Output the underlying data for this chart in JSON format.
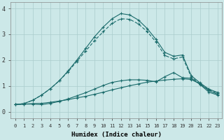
{
  "xlabel": "Humidex (Indice chaleur)",
  "bg_color": "#cce8e8",
  "grid_color": "#aacccc",
  "line_color": "#1a6b6b",
  "xlim": [
    -0.5,
    23.5
  ],
  "ylim": [
    -0.25,
    4.25
  ],
  "xticks": [
    0,
    1,
    2,
    3,
    4,
    5,
    6,
    7,
    8,
    9,
    10,
    11,
    12,
    13,
    14,
    15,
    16,
    17,
    18,
    19,
    20,
    21,
    22,
    23
  ],
  "yticks": [
    0,
    1,
    2,
    3,
    4
  ],
  "line1_y": [
    0.28,
    0.3,
    0.32,
    0.33,
    0.37,
    0.42,
    0.47,
    0.54,
    0.6,
    0.68,
    0.76,
    0.85,
    0.93,
    1.01,
    1.08,
    1.15,
    1.19,
    1.23,
    1.26,
    1.28,
    1.25,
    1.08,
    0.82,
    0.68
  ],
  "line2_y": [
    0.28,
    0.3,
    0.3,
    0.28,
    0.33,
    0.4,
    0.5,
    0.62,
    0.74,
    0.88,
    1.02,
    1.14,
    1.2,
    1.24,
    1.24,
    1.22,
    1.16,
    1.36,
    1.52,
    1.32,
    1.3,
    1.06,
    0.76,
    0.65
  ],
  "line3_y": [
    0.28,
    0.32,
    0.45,
    0.65,
    0.9,
    1.2,
    1.55,
    1.95,
    2.35,
    2.75,
    3.1,
    3.42,
    3.6,
    3.58,
    3.4,
    3.1,
    2.7,
    2.18,
    2.05,
    2.12,
    1.35,
    1.08,
    0.85,
    0.72
  ],
  "line4_y": [
    0.28,
    0.32,
    0.45,
    0.65,
    0.9,
    1.2,
    1.58,
    2.0,
    2.45,
    2.9,
    3.28,
    3.6,
    3.8,
    3.75,
    3.55,
    3.22,
    2.8,
    2.3,
    2.15,
    2.2,
    1.4,
    1.12,
    0.88,
    0.75
  ]
}
